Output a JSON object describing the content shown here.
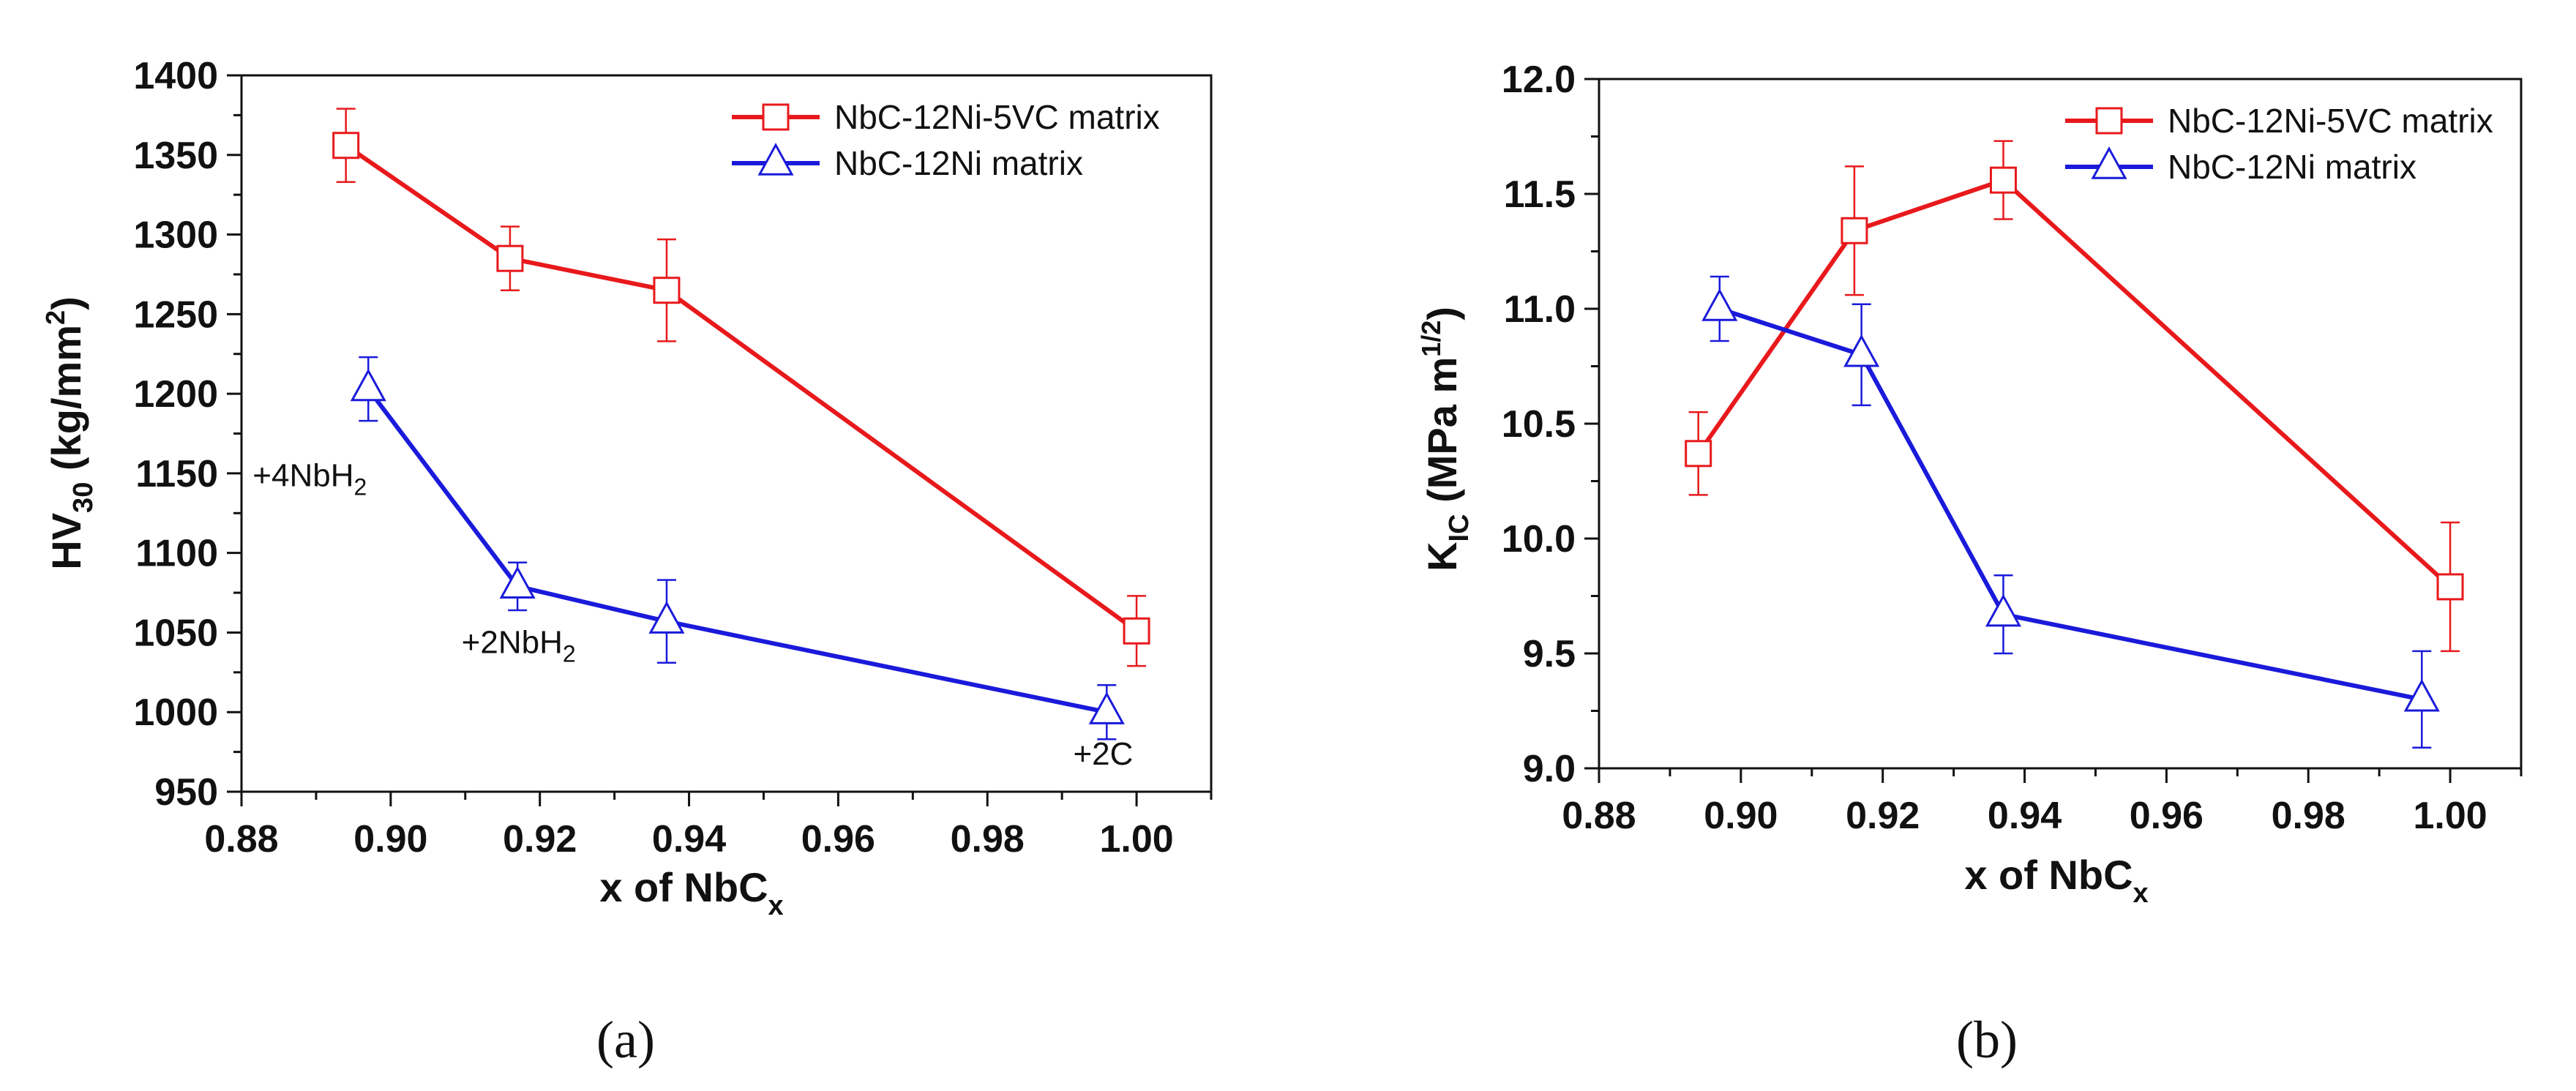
{
  "chart_data": [
    {
      "type": "line",
      "panel_label": "(a)",
      "xlabel": "x of NbC",
      "xlabel_sub": "x",
      "ylabel": "HV",
      "ylabel_sub": "30",
      "ylabel_unit": "(kg/mm",
      "ylabel_unit_sup": "2",
      "ylabel_unit_close": ")",
      "xlim": [
        0.88,
        1.01
      ],
      "ylim": [
        950,
        1400
      ],
      "xticks": [
        0.88,
        0.9,
        0.92,
        0.94,
        0.96,
        0.98,
        1.0
      ],
      "xtick_labels": [
        "0.88",
        "0.90",
        "0.92",
        "0.94",
        "0.96",
        "0.98",
        "1.00"
      ],
      "yticks": [
        950,
        1000,
        1050,
        1100,
        1150,
        1200,
        1250,
        1300,
        1350,
        1400
      ],
      "ytick_labels": [
        "950",
        "1000",
        "1050",
        "1100",
        "1150",
        "1200",
        "1250",
        "1300",
        "1350",
        "1400"
      ],
      "legend_position": "top-right",
      "series": [
        {
          "name": "NbC-12Ni-5VC matrix",
          "color": "#e8191c",
          "marker": "square",
          "x": [
            0.894,
            0.916,
            0.937,
            1.0
          ],
          "y": [
            1356,
            1285,
            1265,
            1051
          ],
          "err": [
            23,
            20,
            32,
            22
          ]
        },
        {
          "name": "NbC-12Ni matrix",
          "color": "#1a1adb",
          "marker": "triangle",
          "x": [
            0.897,
            0.917,
            0.937,
            0.996
          ],
          "y": [
            1203,
            1079,
            1057,
            1000
          ],
          "err": [
            20,
            15,
            26,
            17
          ]
        }
      ],
      "annotations": [
        {
          "text": "+4NbH",
          "sub": "2",
          "x": 0.8815,
          "y": 1142
        },
        {
          "text": "+2NbH",
          "sub": "2",
          "x": 0.9095,
          "y": 1037
        },
        {
          "text": "+2C",
          "sub": "",
          "x": 0.9915,
          "y": 967
        }
      ]
    },
    {
      "type": "line",
      "panel_label": "(b)",
      "xlabel": "x of NbC",
      "xlabel_sub": "x",
      "ylabel": "K",
      "ylabel_sub": "IC",
      "ylabel_unit": "(MPa m",
      "ylabel_unit_sup": "1/2",
      "ylabel_unit_close": ")",
      "xlim": [
        0.88,
        1.01
      ],
      "ylim": [
        9.0,
        12.0
      ],
      "xticks": [
        0.88,
        0.9,
        0.92,
        0.94,
        0.96,
        0.98,
        1.0
      ],
      "xtick_labels": [
        "0.88",
        "0.90",
        "0.92",
        "0.94",
        "0.96",
        "0.98",
        "1.00"
      ],
      "yticks": [
        9.0,
        9.5,
        10.0,
        10.5,
        11.0,
        11.5,
        12.0
      ],
      "ytick_labels": [
        "9.0",
        "9.5",
        "10.0",
        "10.5",
        "11.0",
        "11.5",
        "12.0"
      ],
      "legend_position": "top-right",
      "series": [
        {
          "name": "NbC-12Ni-5VC matrix",
          "color": "#e8191c",
          "marker": "square",
          "x": [
            0.894,
            0.916,
            0.937,
            1.0
          ],
          "y": [
            10.37,
            11.34,
            11.56,
            9.79
          ],
          "err": [
            0.18,
            0.28,
            0.17,
            0.28
          ]
        },
        {
          "name": "NbC-12Ni matrix",
          "color": "#1a1adb",
          "marker": "triangle",
          "x": [
            0.897,
            0.917,
            0.937,
            0.996
          ],
          "y": [
            11.0,
            10.8,
            9.67,
            9.3
          ],
          "err": [
            0.14,
            0.22,
            0.17,
            0.21
          ]
        }
      ],
      "annotations": []
    }
  ]
}
